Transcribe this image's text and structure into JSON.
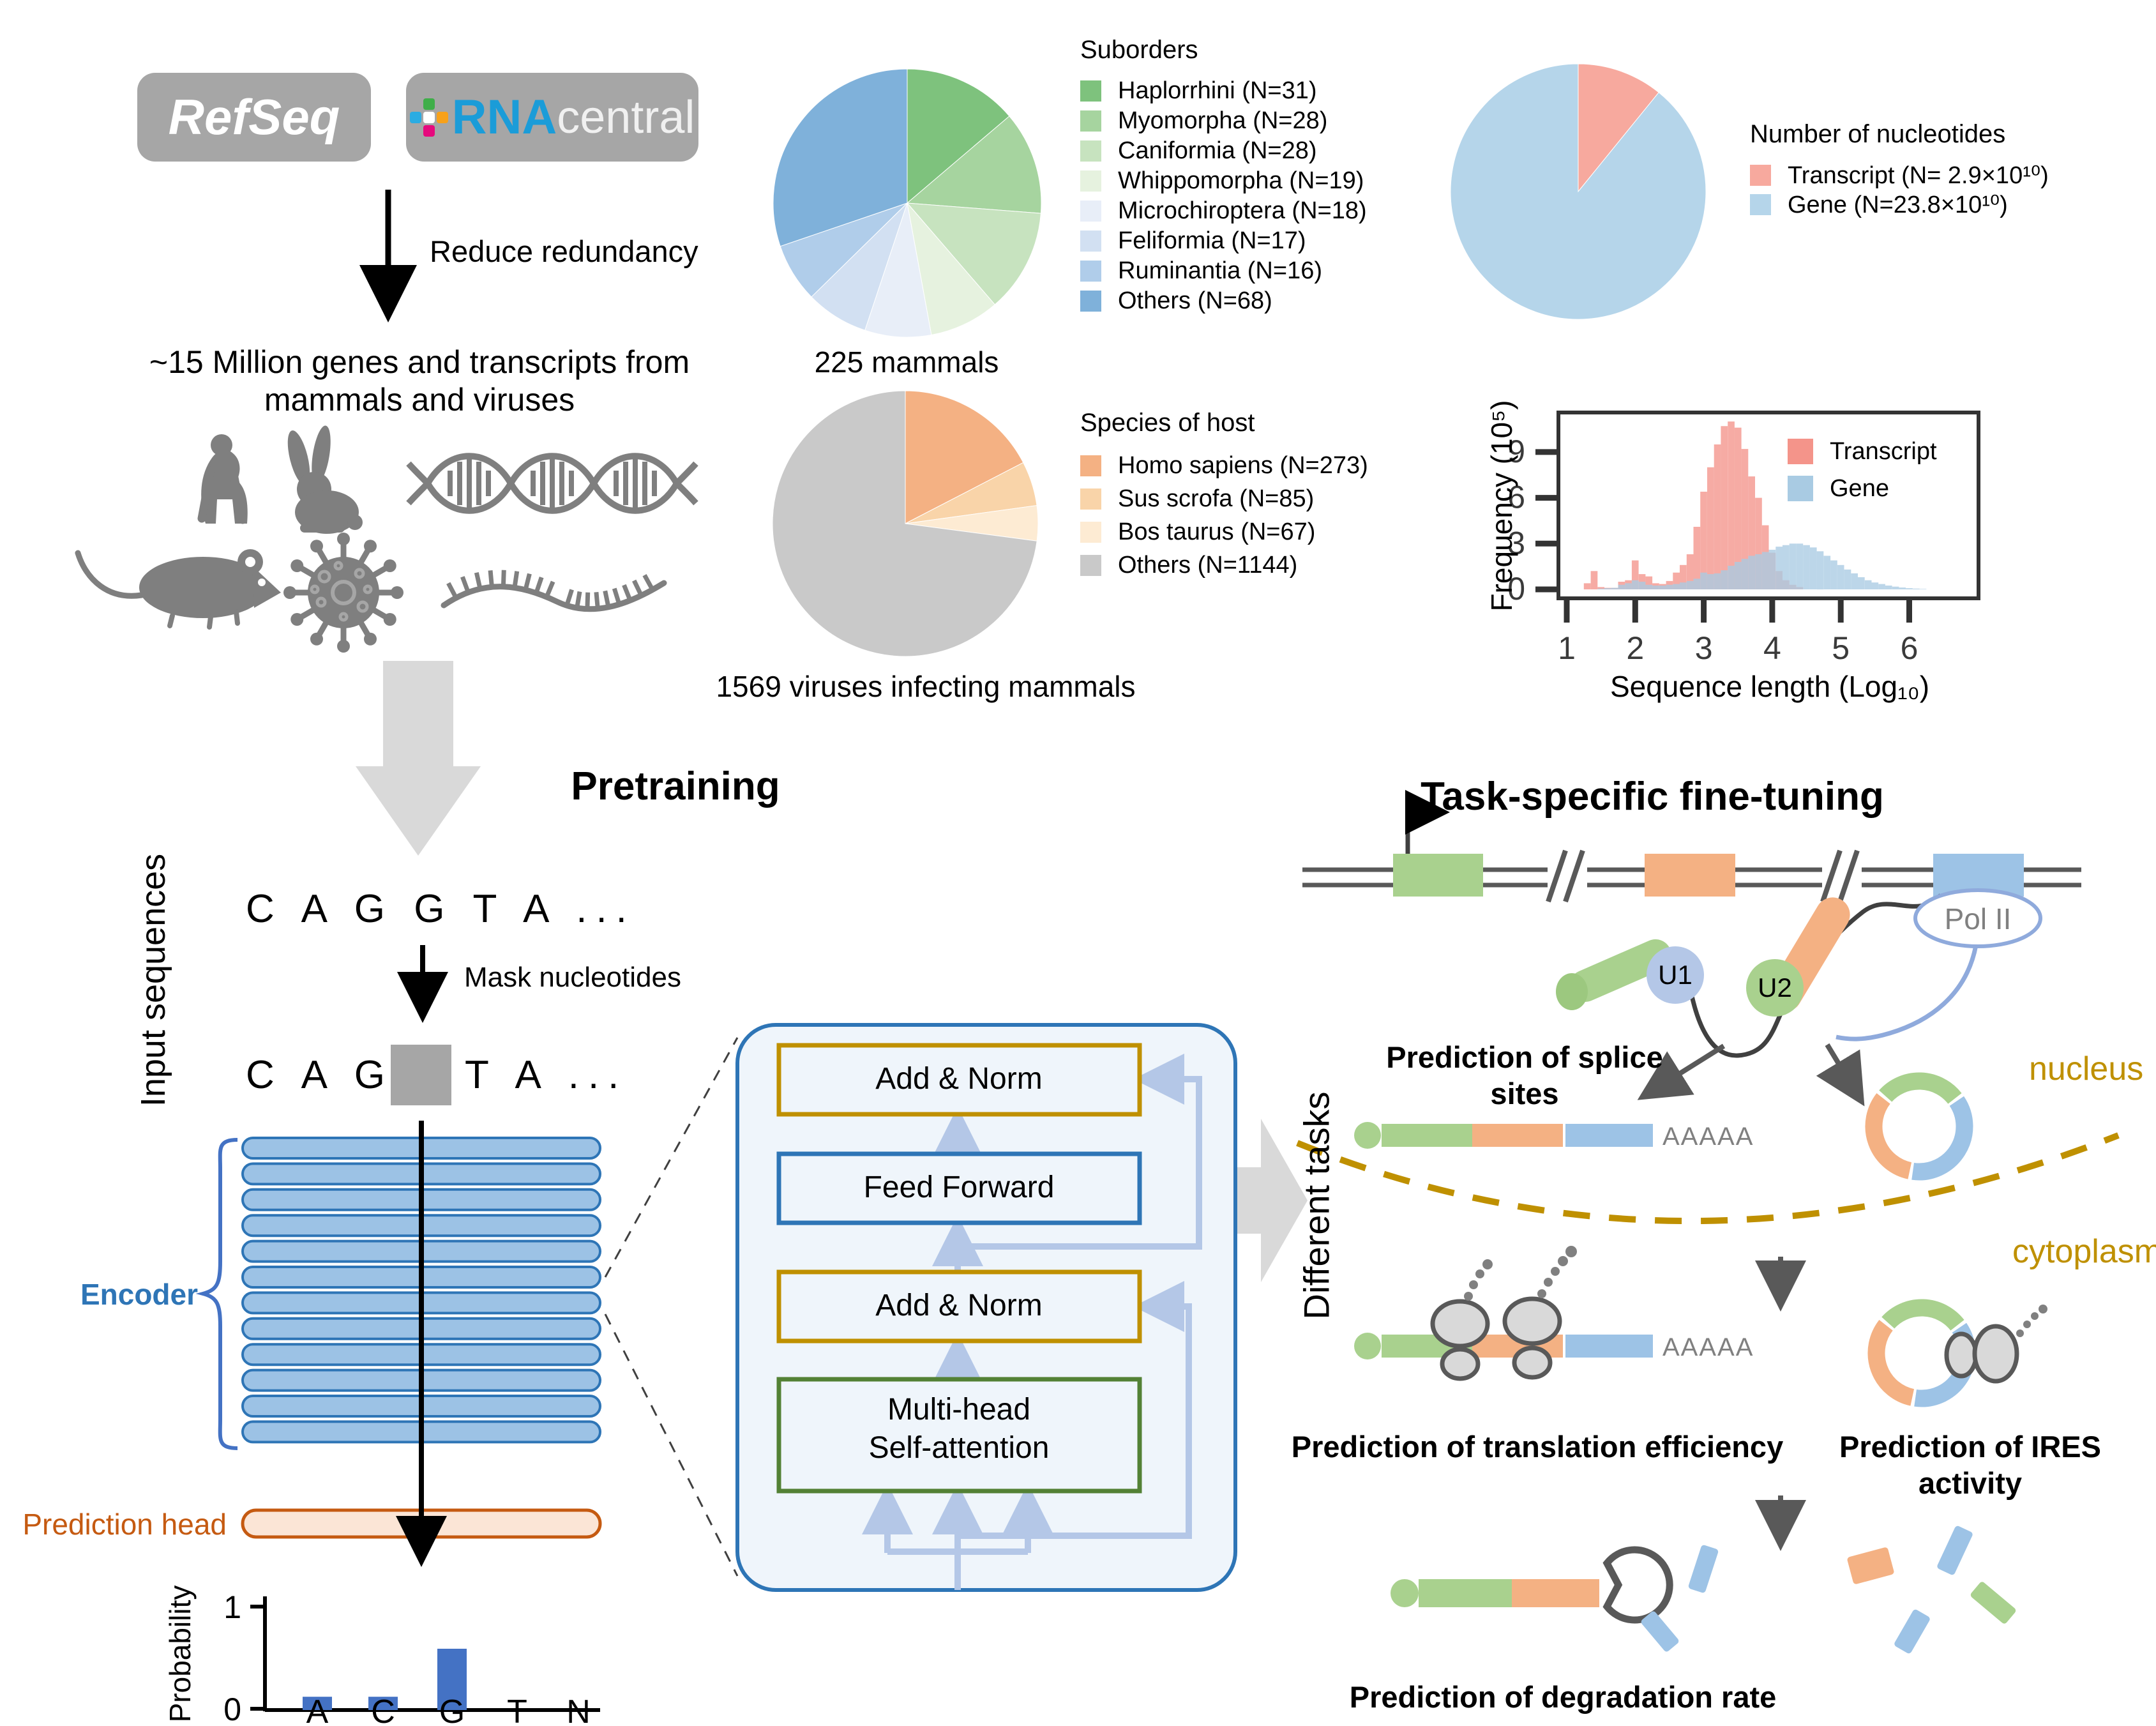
{
  "header": {
    "refseq_label": "RefSeq",
    "rnacentral_rna": "RNA",
    "rnacentral_central": "central",
    "reduce_label": "Reduce redundancy",
    "summary_line1": "~15 Million genes and transcripts from",
    "summary_line2": "mammals and viruses"
  },
  "pretraining": {
    "title": "Pretraining",
    "input_label": "Input sequences",
    "sequence": "C A G G T A ...",
    "mask_label": "Mask nucleotides",
    "masked_left": "C A G",
    "masked_right": "T A ...",
    "encoder_label": "Encoder",
    "encoder_layers": 12,
    "prediction_head_label": "Prediction head"
  },
  "transformer": {
    "box_top": "Add & Norm",
    "box_ff": "Feed Forward",
    "box_mid": "Add & Norm",
    "box_mha_line1": "Multi-head",
    "box_mha_line2": "Self-attention"
  },
  "finetuning": {
    "title": "Task-specific fine-tuning",
    "different_tasks": "Different tasks",
    "polii": "Pol II",
    "u1": "U1",
    "u2": "U2",
    "splice_caption_line1": "Prediction of splice",
    "splice_caption_line2": "sites",
    "nucleus": "nucleus",
    "cytoplasm": "cytoplasm",
    "polya_1": "AAAAA",
    "polya_2": "AAAAA",
    "te_caption": "Prediction of translation efficiency",
    "ires_caption_line1": "Prediction of IRES",
    "ires_caption_line2": "activity",
    "deg_caption": "Prediction of degradation rate"
  },
  "colors": {
    "logo_gray": "#a6a6a6",
    "rna_blue": "#1b9cd8",
    "silhouette_gray": "#7f7f7f",
    "flow_arrow_gray": "#d9d9d9",
    "encoder_fill": "#9cc2e5",
    "encoder_border": "#2e75b6",
    "prediction_head_fill": "#fbe5d6",
    "prediction_head_border": "#c55a11",
    "gold": "#bf9000",
    "green_box": "#538135",
    "light_arrow": "#b4c7e7",
    "exon_green": "#a9d18e",
    "exon_orange": "#f4b183",
    "exon_blue": "#9dc3e6",
    "dark_gray": "#595959",
    "ribosome_fill": "#d9d9d9"
  },
  "chart_data": [
    {
      "id": "mammals_pie",
      "type": "pie",
      "title": "Suborders",
      "caption": "225 mammals",
      "labels": [
        "Haplorrhini (N=31)",
        "Myomorpha (N=28)",
        "Caniformia (N=28)",
        "Whippomorpha (N=19)",
        "Microchiroptera (N=18)",
        "Feliformia (N=17)",
        "Ruminantia (N=16)",
        "Others (N=68)"
      ],
      "values": [
        31,
        28,
        28,
        19,
        18,
        17,
        16,
        68
      ],
      "colors": [
        "#7ec27d",
        "#a6d49f",
        "#c7e3bf",
        "#e6f2df",
        "#e8eef8",
        "#d2e0f2",
        "#b0cdea",
        "#7fb1da"
      ]
    },
    {
      "id": "viruses_pie",
      "type": "pie",
      "title": "Species of host",
      "caption": "1569 viruses infecting mammals",
      "labels": [
        "Homo sapiens (N=273)",
        "Sus scrofa (N=85)",
        "Bos taurus (N=67)",
        "Others (N=1144)"
      ],
      "values": [
        273,
        85,
        67,
        1144
      ],
      "colors": [
        "#f4b183",
        "#f9d4a9",
        "#fdebd3",
        "#c9c9c9"
      ]
    },
    {
      "id": "nucleotides_pie",
      "type": "pie",
      "title": "Number of nucleotides",
      "labels": [
        "Transcript (N= 2.9×10¹⁰)",
        "Gene (N=23.8×10¹⁰)"
      ],
      "values": [
        2.9,
        23.8
      ],
      "colors": [
        "#f7a99e",
        "#b5d5ea"
      ]
    },
    {
      "id": "length_histogram",
      "type": "histogram",
      "xlabel": "Sequence length (Log₁₀)",
      "ylabel": "Frequency (10⁵)",
      "xlim": [
        1,
        6.3
      ],
      "ylim": [
        0,
        11.5
      ],
      "xticks": [
        1,
        2,
        3,
        4,
        5,
        6
      ],
      "yticks": [
        0,
        3,
        6,
        9
      ],
      "legend": [
        "Transcript",
        "Gene"
      ],
      "bin_width": 0.1,
      "series": [
        {
          "name": "Transcript",
          "x0": 1.3,
          "color": "#f4948a",
          "heights": [
            0.4,
            1.2,
            0.15,
            0.1,
            0.1,
            0.5,
            0.6,
            1.9,
            1.0,
            0.85,
            0.4,
            0.35,
            0.55,
            1.1,
            1.6,
            2.3,
            4.1,
            6.4,
            8.0,
            9.5,
            10.7,
            11.0,
            10.6,
            9.2,
            7.4,
            6.0,
            4.2,
            2.4,
            1.2,
            0.6,
            0.3,
            0.15
          ]
        },
        {
          "name": "Gene",
          "x0": 1.5,
          "color": "#a9cbe3",
          "heights": [
            0.05,
            0.08,
            0.1,
            0.3,
            0.4,
            0.6,
            0.5,
            0.3,
            0.25,
            0.25,
            0.3,
            0.35,
            0.45,
            0.55,
            0.7,
            1.1,
            1.0,
            1.05,
            1.25,
            1.55,
            1.8,
            2.0,
            2.2,
            2.3,
            2.45,
            2.6,
            2.8,
            2.9,
            3.0,
            3.0,
            2.9,
            2.75,
            2.5,
            2.2,
            1.9,
            1.6,
            1.3,
            1.05,
            0.8,
            0.6,
            0.45,
            0.35,
            0.25,
            0.18,
            0.12,
            0.08,
            0.05,
            0.03
          ]
        }
      ]
    },
    {
      "id": "probability_bars",
      "type": "bar",
      "ylabel": "Probability",
      "yticks": [
        "1",
        "0"
      ],
      "categories": [
        "A",
        "C",
        "G",
        "T",
        "N"
      ],
      "values": [
        0.13,
        0.13,
        0.6,
        0,
        0
      ],
      "color": "#4472c4"
    }
  ]
}
